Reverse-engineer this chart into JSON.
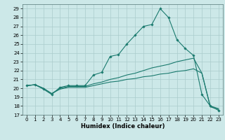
{
  "title": "",
  "xlabel": "Humidex (Indice chaleur)",
  "bg_color": "#cce8e8",
  "grid_color": "#aacccc",
  "line_color": "#1a7a6e",
  "xlim": [
    -0.5,
    23.5
  ],
  "ylim": [
    17,
    29.5
  ],
  "yticks": [
    17,
    18,
    19,
    20,
    21,
    22,
    23,
    24,
    25,
    26,
    27,
    28,
    29
  ],
  "xticks": [
    0,
    1,
    2,
    3,
    4,
    5,
    6,
    7,
    8,
    9,
    10,
    11,
    12,
    13,
    14,
    15,
    16,
    17,
    18,
    19,
    20,
    21,
    22,
    23
  ],
  "line1_x": [
    0,
    1,
    2,
    3,
    4,
    5,
    6,
    7,
    8,
    9,
    10,
    11,
    12,
    13,
    14,
    15,
    16,
    17,
    18,
    19,
    20,
    21,
    22,
    23
  ],
  "line1_y": [
    20.3,
    20.4,
    19.9,
    19.3,
    20.1,
    20.3,
    20.3,
    20.3,
    21.5,
    21.8,
    23.6,
    23.8,
    25.0,
    26.0,
    27.0,
    27.2,
    29.0,
    28.0,
    25.5,
    24.5,
    23.7,
    19.3,
    18.0,
    17.5
  ],
  "line2_x": [
    0,
    1,
    2,
    3,
    4,
    5,
    6,
    7,
    8,
    9,
    10,
    11,
    12,
    13,
    14,
    15,
    16,
    17,
    18,
    19,
    20,
    21,
    22,
    23
  ],
  "line2_y": [
    20.3,
    20.4,
    20.0,
    19.4,
    20.0,
    20.2,
    20.2,
    20.2,
    20.5,
    20.7,
    21.0,
    21.2,
    21.5,
    21.7,
    22.0,
    22.3,
    22.5,
    22.7,
    23.0,
    23.2,
    23.4,
    21.7,
    17.9,
    17.6
  ],
  "line3_x": [
    0,
    1,
    2,
    3,
    4,
    5,
    6,
    7,
    8,
    9,
    10,
    11,
    12,
    13,
    14,
    15,
    16,
    17,
    18,
    19,
    20,
    21,
    22,
    23
  ],
  "line3_y": [
    20.3,
    20.4,
    20.0,
    19.4,
    19.9,
    20.1,
    20.1,
    20.1,
    20.3,
    20.5,
    20.7,
    20.8,
    21.0,
    21.1,
    21.3,
    21.4,
    21.6,
    21.7,
    21.9,
    22.0,
    22.2,
    21.7,
    18.0,
    17.7
  ]
}
